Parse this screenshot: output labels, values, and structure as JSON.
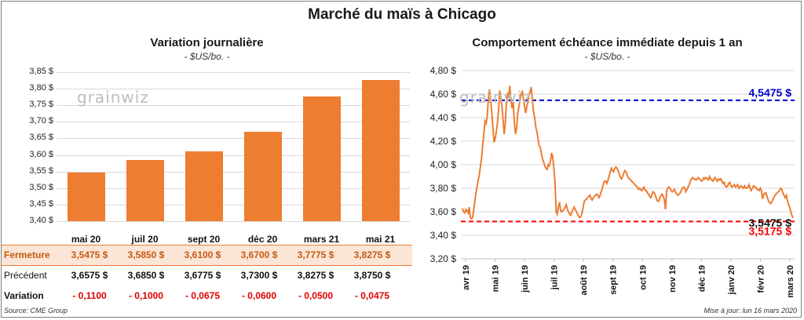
{
  "title": "Marché du maïs à Chicago",
  "left_panel": {
    "title": "Variation  journalière",
    "unit": "- $US/bo. -",
    "watermark": "grainwiz",
    "table": {
      "rows": [
        {
          "label": "Fermeture",
          "values": [
            "3,5475  $",
            "3,5850  $",
            "3,6100  $",
            "3,6700  $",
            "3,7775  $",
            "3,8275  $"
          ]
        },
        {
          "label": "Précédent",
          "values": [
            "3,6575  $",
            "3,6850  $",
            "3,6775  $",
            "3,7300  $",
            "3,8275  $",
            "3,8750  $"
          ]
        },
        {
          "label": "Variation",
          "values": [
            "- 0,1100",
            "- 0,1000",
            "- 0,0675",
            "- 0,0600",
            "- 0,0500",
            "- 0,0475"
          ]
        }
      ]
    }
  },
  "right_panel": {
    "title": "Comportement  échéance immédiate depuis 1 an",
    "unit": "- $US/bo. -",
    "watermark": "grainwiz"
  },
  "footer": {
    "source": "Source: CME Group",
    "updated": "Mise à jour: lun 16 mars 2020"
  },
  "chart_data": [
    {
      "type": "bar",
      "title": "Variation  journalière",
      "categories": [
        "mai 20",
        "juil 20",
        "sept 20",
        "déc 20",
        "mars 21",
        "mai 21"
      ],
      "values": [
        3.5475,
        3.585,
        3.61,
        3.67,
        3.7775,
        3.8275
      ],
      "ylim": [
        3.4,
        3.85
      ],
      "yticks": [
        "3,40 $",
        "3,45 $",
        "3,50 $",
        "3,55 $",
        "3,60 $",
        "3,65 $",
        "3,70 $",
        "3,75 $",
        "3,80 $",
        "3,85 $"
      ],
      "color": "#ed7d31",
      "grid": true
    },
    {
      "type": "line",
      "title": "Comportement  échéance immédiate depuis 1 an",
      "ylim": [
        3.2,
        4.8
      ],
      "yticks": [
        "3,20 $",
        "3,40 $",
        "3,60 $",
        "3,80 $",
        "4,00 $",
        "4,20 $",
        "4,40 $",
        "4,60 $",
        "4,80 $"
      ],
      "xticks": [
        "avr 19",
        "mai 19",
        "juin 19",
        "juil 19",
        "août 19",
        "sept 19",
        "oct 19",
        "nov 19",
        "déc 19",
        "janv 20",
        "févr 20",
        "mars 20"
      ],
      "color": "#ed7d31",
      "grid": true,
      "series": [
        {
          "values": [
            3.63,
            3.6,
            3.59,
            3.62,
            3.61,
            3.59,
            3.64,
            3.55,
            3.54,
            3.55,
            3.62,
            3.69,
            3.76,
            3.82,
            3.87,
            3.92,
            3.99,
            4.06,
            4.17,
            4.27,
            4.37,
            4.35,
            4.42,
            4.56,
            4.64,
            4.55,
            4.44,
            4.32,
            4.19,
            4.22,
            4.28,
            4.35,
            4.46,
            4.63,
            4.58,
            4.5,
            4.38,
            4.26,
            4.36,
            4.53,
            4.61,
            4.57,
            4.67,
            4.54,
            4.48,
            4.54,
            4.36,
            4.26,
            4.31,
            4.44,
            4.49,
            4.55,
            4.6,
            4.62,
            4.56,
            4.5,
            4.44,
            4.49,
            4.53,
            4.6,
            4.62,
            4.66,
            4.54,
            4.45,
            4.4,
            4.32,
            4.28,
            4.22,
            4.16,
            4.15,
            4.09,
            4.05,
            4.02,
            3.99,
            3.97,
            3.96,
            4.0,
            3.99,
            4.03,
            4.1,
            4.07,
            3.97,
            3.86,
            3.6,
            3.58,
            3.64,
            3.68,
            3.61,
            3.6,
            3.61,
            3.62,
            3.64,
            3.66,
            3.62,
            3.6,
            3.58,
            3.57,
            3.6,
            3.62,
            3.64,
            3.62,
            3.6,
            3.58,
            3.56,
            3.55,
            3.56,
            3.59,
            3.64,
            3.69,
            3.7,
            3.71,
            3.72,
            3.73,
            3.74,
            3.71,
            3.7,
            3.72,
            3.73,
            3.74,
            3.75,
            3.74,
            3.72,
            3.74,
            3.77,
            3.8,
            3.84,
            3.86,
            3.86,
            3.84,
            3.87,
            3.9,
            3.94,
            3.97,
            3.95,
            3.94,
            3.97,
            3.98,
            3.97,
            3.95,
            3.92,
            3.89,
            3.88,
            3.9,
            3.93,
            3.95,
            3.94,
            3.91,
            3.89,
            3.88,
            3.87,
            3.86,
            3.85,
            3.84,
            3.83,
            3.82,
            3.81,
            3.79,
            3.8,
            3.79,
            3.78,
            3.8,
            3.81,
            3.78,
            3.78,
            3.76,
            3.75,
            3.73,
            3.72,
            3.75,
            3.77,
            3.76,
            3.74,
            3.71,
            3.69,
            3.69,
            3.72,
            3.74,
            3.75,
            3.73,
            3.7,
            3.62,
            3.78,
            3.8,
            3.81,
            3.8,
            3.78,
            3.77,
            3.78,
            3.79,
            3.76,
            3.75,
            3.74,
            3.75,
            3.76,
            3.78,
            3.8,
            3.81,
            3.8,
            3.77,
            3.79,
            3.81,
            3.83,
            3.86,
            3.88,
            3.89,
            3.88,
            3.88,
            3.87,
            3.88,
            3.89,
            3.88,
            3.87,
            3.86,
            3.87,
            3.89,
            3.88,
            3.89,
            3.88,
            3.87,
            3.9,
            3.88,
            3.87,
            3.86,
            3.88,
            3.89,
            3.87,
            3.86,
            3.88,
            3.87,
            3.88,
            3.86,
            3.84,
            3.85,
            3.82,
            3.81,
            3.82,
            3.84,
            3.85,
            3.82,
            3.81,
            3.82,
            3.83,
            3.81,
            3.82,
            3.83,
            3.8,
            3.81,
            3.82,
            3.81,
            3.8,
            3.82,
            3.8,
            3.8,
            3.81,
            3.83,
            3.8,
            3.78,
            3.8,
            3.82,
            3.81,
            3.81,
            3.79,
            3.79,
            3.78,
            3.8,
            3.78,
            3.71,
            3.74,
            3.76,
            3.76,
            3.73,
            3.7,
            3.68,
            3.67,
            3.68,
            3.7,
            3.72,
            3.74,
            3.75,
            3.76,
            3.77,
            3.78,
            3.8,
            3.79,
            3.76,
            3.74,
            3.72,
            3.74,
            3.7,
            3.66,
            3.64,
            3.6,
            3.57,
            3.5475
          ]
        }
      ],
      "reference_lines": [
        {
          "value": 4.5475,
          "label": "4,5475 $",
          "color": "#0000cc"
        },
        {
          "value": 3.5175,
          "label": "3,5175 $",
          "color": "#ff0000"
        }
      ],
      "last_value": {
        "value": 3.5475,
        "label": "3,5475 $"
      }
    }
  ]
}
